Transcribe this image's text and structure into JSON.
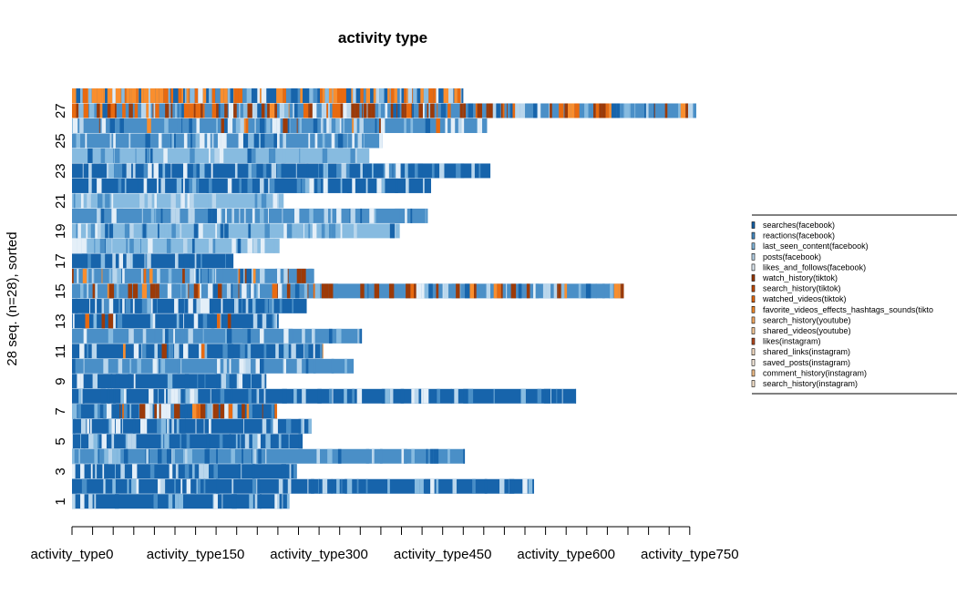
{
  "chart_data": {
    "type": "sequence-index-plot",
    "title": "activity type",
    "ylabel": "28 seq. (n=28), sorted",
    "xlabel": "",
    "n_sequences": 28,
    "x_tick_labels": [
      "activity_type0",
      "activity_type150",
      "activity_type300",
      "activity_type450",
      "activity_type600",
      "activity_type750"
    ],
    "y_tick_labels": [
      "1",
      "3",
      "5",
      "7",
      "9",
      "11",
      "13",
      "15",
      "17",
      "19",
      "21",
      "23",
      "25",
      "27"
    ],
    "xlim": [
      0,
      750
    ],
    "sequence_lengths": [
      264,
      561,
      273,
      477,
      280,
      291,
      249,
      612,
      236,
      342,
      305,
      352,
      251,
      285,
      670,
      294,
      196,
      252,
      398,
      432,
      257,
      436,
      508,
      361,
      377,
      504,
      758,
      475
    ],
    "dominant_state": [
      "searches(facebook)",
      "searches(facebook)",
      "searches(facebook)",
      "reactions(facebook)",
      "searches(facebook)",
      "searches(facebook)",
      "searches(facebook)",
      "searches(facebook)",
      "searches(facebook)",
      "reactions(facebook)",
      "searches(facebook)",
      "reactions(facebook)",
      "searches(facebook)",
      "searches(facebook)",
      "reactions(facebook)",
      "reactions(facebook)",
      "searches(facebook)",
      "last_seen_content(facebook)",
      "last_seen_content(facebook)",
      "reactions(facebook)",
      "last_seen_content(facebook)",
      "searches(facebook)",
      "searches(facebook)",
      "last_seen_content(facebook)",
      "reactions(facebook)",
      "reactions(facebook)",
      "reactions(facebook)",
      "searches(facebook)"
    ],
    "states": [
      {
        "name": "searches(facebook)",
        "color": "#1764ab"
      },
      {
        "name": "reactions(facebook)",
        "color": "#4a8fc7"
      },
      {
        "name": "last_seen_content(facebook)",
        "color": "#87bbe0"
      },
      {
        "name": "posts(facebook)",
        "color": "#b9d6ec"
      },
      {
        "name": "likes_and_follows(facebook)",
        "color": "#e4eff8"
      },
      {
        "name": "watch_history(tiktok)",
        "color": "#9c3a08"
      },
      {
        "name": "search_history(tiktok)",
        "color": "#c74e07"
      },
      {
        "name": "watched_videos(tiktok)",
        "color": "#e86a10"
      },
      {
        "name": "favorite_videos_effects_hashtags_sounds(tiktok)",
        "color": "#f98e2e"
      },
      {
        "name": "search_history(youtube)",
        "color": "#fdb067"
      },
      {
        "name": "shared_videos(youtube)",
        "color": "#fdcf9e"
      },
      {
        "name": "likes(instagram)",
        "color": "#b84a20"
      },
      {
        "name": "shared_links(instagram)",
        "color": "#fbe2c8"
      },
      {
        "name": "saved_posts(instagram)",
        "color": "#fdf0e2"
      },
      {
        "name": "comment_history(instagram)",
        "color": "#f6c38c"
      },
      {
        "name": "search_history(instagram)",
        "color": "#fde8d0"
      }
    ],
    "legend_position": "right",
    "legend_labels": [
      "searches(facebook)",
      "reactions(facebook)",
      "last_seen_content(facebook)",
      "posts(facebook)",
      "likes_and_follows(facebook)",
      "watch_history(tiktok)",
      "search_history(tiktok)",
      "watched_videos(tiktok)",
      "favorite_videos_effects_hashtags_sounds(tikto",
      "search_history(youtube)",
      "shared_videos(youtube)",
      "likes(instagram)",
      "shared_links(instagram)",
      "saved_posts(instagram)",
      "comment_history(instagram)",
      "search_history(instagram)"
    ]
  }
}
